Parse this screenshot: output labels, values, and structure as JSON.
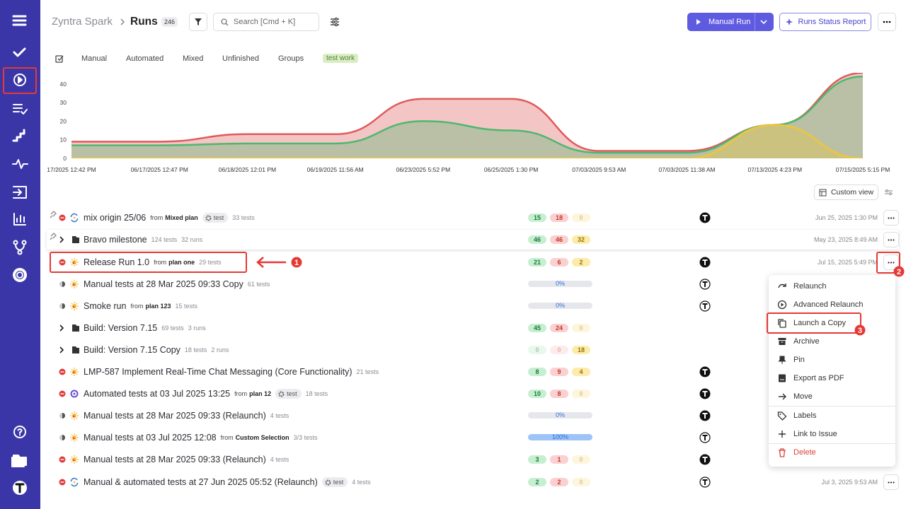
{
  "header": {
    "project": "Zyntra Spark",
    "page": "Runs",
    "count": "246",
    "search_placeholder": "Search [Cmd + K]",
    "primary_button": "Manual Run",
    "report_button": "Runs Status Report"
  },
  "tabs": [
    "Manual",
    "Automated",
    "Mixed",
    "Unfinished",
    "Groups",
    "test work"
  ],
  "highlight_tab": 5,
  "chart_data": {
    "type": "area",
    "x": [
      "17/2025 12:42 PM",
      "06/17/2025 12:47 PM",
      "06/18/2025 12:01 PM",
      "06/19/2025 11:56 AM",
      "06/23/2025 5:52 PM",
      "06/25/2025 1:30 PM",
      "07/03/2025 9:53 AM",
      "07/03/2025 11:38 AM",
      "07/13/2025 4:23 PM",
      "07/15/2025 5:15 PM"
    ],
    "series": [
      {
        "name": "Failed",
        "color": "#e05a5a",
        "values": [
          9,
          9,
          13,
          13,
          32,
          32,
          4,
          4,
          18,
          46
        ]
      },
      {
        "name": "Passed",
        "color": "#4cb86e",
        "values": [
          7,
          7,
          8,
          8,
          20,
          15,
          3,
          3,
          18,
          44
        ]
      },
      {
        "name": "Skipped",
        "color": "#efc63a",
        "values": [
          0,
          0,
          0,
          0,
          0,
          0,
          0,
          0,
          18,
          0
        ]
      }
    ],
    "ylim": [
      0,
      46
    ],
    "yticks": [
      0,
      10,
      20,
      30,
      40
    ],
    "grid": false
  },
  "view_button": "Custom view",
  "rows": [
    {
      "name": "mix origin 25/06",
      "pinned": true,
      "status": "failed",
      "icon": "auto",
      "source_prefix": "from",
      "source": "Mixed plan",
      "tag": "test",
      "tests": "33 tests",
      "counts": [
        15,
        18,
        0
      ],
      "avatar": "solid",
      "date": "Jun 25, 2025 1:30 PM"
    },
    {
      "name": "Bravo milestone",
      "pinned": true,
      "kind": "folder",
      "tests": "124 tests",
      "runs": "32 runs",
      "counts": [
        46,
        46,
        32
      ],
      "date": "May 23, 2025 8:49 AM"
    },
    {
      "name": "Release Run 1.0",
      "status": "failed",
      "icon": "manual",
      "source_prefix": "from",
      "source": "plan one",
      "tests": "29 tests",
      "counts": [
        21,
        6,
        2
      ],
      "avatar": "solid",
      "date": "Jul 15, 2025 5:49 PM"
    },
    {
      "name": "Manual tests at 28 Mar 2025 09:33 Copy",
      "status": "running",
      "icon": "manual",
      "tests": "61 tests",
      "progress": "0%",
      "progress_value": 0,
      "avatar": "outline"
    },
    {
      "name": "Smoke run",
      "status": "running",
      "icon": "manual",
      "source_prefix": "from",
      "source": "plan 123",
      "tests": "15 tests",
      "progress": "0%",
      "progress_value": 0,
      "avatar": "outline"
    },
    {
      "name": "Build: Version 7.15",
      "kind": "folder",
      "tests": "69 tests",
      "runs": "3 runs",
      "counts": [
        45,
        24,
        0
      ]
    },
    {
      "name": "Build: Version 7.15 Copy",
      "kind": "folder",
      "tests": "18 tests",
      "runs": "2 runs",
      "counts": [
        0,
        0,
        18
      ]
    },
    {
      "name": "LMP-587 Implement Real-Time Chat Messaging (Core Functionality)",
      "status": "failed",
      "icon": "manual",
      "tests": "21 tests",
      "counts": [
        8,
        9,
        4
      ],
      "avatar": "solid"
    },
    {
      "name": "Automated tests at 03 Jul 2025 13:25",
      "status": "failed",
      "icon": "mixed",
      "source_prefix": "from",
      "source": "plan 12",
      "tag": "test",
      "tests": "18 tests",
      "counts": [
        10,
        8,
        0
      ],
      "avatar": "solid"
    },
    {
      "name": "Manual tests at 28 Mar 2025 09:33 (Relaunch)",
      "status": "running",
      "icon": "manual",
      "tests": "4 tests",
      "progress": "0%",
      "progress_value": 0,
      "avatar": "solid"
    },
    {
      "name": "Manual tests at 03 Jul 2025 12:08",
      "status": "running",
      "icon": "manual",
      "source_prefix": "from",
      "source": "Custom Selection",
      "tests": "3/3 tests",
      "progress": "100%",
      "progress_value": 100,
      "avatar": "outline"
    },
    {
      "name": "Manual tests at 28 Mar 2025 09:33 (Relaunch)",
      "status": "failed",
      "icon": "manual",
      "tests": "4 tests",
      "counts": [
        3,
        1,
        0
      ],
      "avatar": "solid"
    },
    {
      "name": "Manual & automated tests at 27 Jun 2025 05:52 (Relaunch)",
      "status": "failed",
      "icon": "auto",
      "tag": "test",
      "tests": "4 tests",
      "counts": [
        2,
        2,
        0
      ],
      "avatar": "outline",
      "date": "Jul 3, 2025 9:53 AM"
    }
  ],
  "context_menu": [
    {
      "label": "Relaunch"
    },
    {
      "label": "Advanced Relaunch"
    },
    {
      "label": "Launch a Copy"
    },
    {
      "label": "Archive"
    },
    {
      "label": "Pin"
    },
    {
      "label": "Export as PDF"
    },
    {
      "label": "Move"
    },
    {
      "label": "Labels"
    },
    {
      "label": "Link to Issue"
    },
    {
      "label": "Delete",
      "danger": true
    }
  ],
  "annotations": [
    "1",
    "2",
    "3"
  ]
}
